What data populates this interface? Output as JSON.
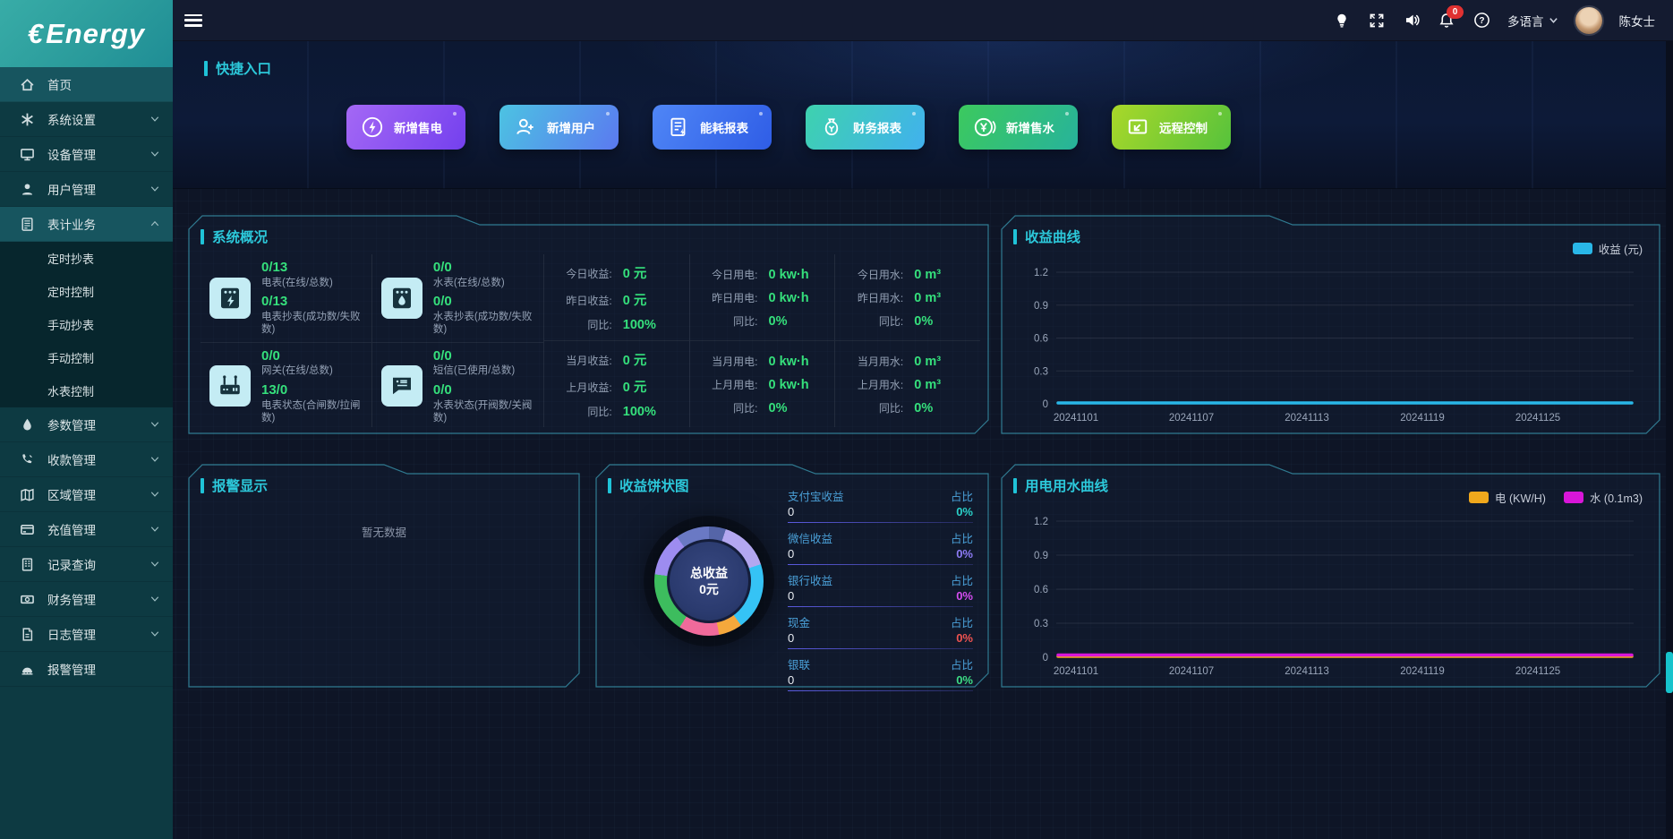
{
  "brand": {
    "symbol": "€",
    "name": "Energy"
  },
  "header": {
    "notification_count": "0",
    "language_label": "多语言",
    "user_name": "陈女士",
    "icons": [
      "bulb-icon",
      "fullscreen-icon",
      "speaker-icon",
      "bell-icon",
      "help-icon"
    ]
  },
  "sidebar": {
    "items": [
      {
        "label": "首页",
        "icon": "home",
        "active": true,
        "chevron": null
      },
      {
        "label": "系统设置",
        "icon": "gear",
        "chevron": "down"
      },
      {
        "label": "设备管理",
        "icon": "monitor",
        "chevron": "down"
      },
      {
        "label": "用户管理",
        "icon": "user",
        "chevron": "down"
      },
      {
        "label": "表计业务",
        "icon": "meter",
        "chevron": "up",
        "expanded": true,
        "highlight": true,
        "children": [
          "定时抄表",
          "定时控制",
          "手动抄表",
          "手动控制",
          "水表控制"
        ]
      },
      {
        "label": "参数管理",
        "icon": "droplet",
        "chevron": "down"
      },
      {
        "label": "收款管理",
        "icon": "phone",
        "chevron": "down"
      },
      {
        "label": "区域管理",
        "icon": "map",
        "chevron": "down"
      },
      {
        "label": "充值管理",
        "icon": "card",
        "chevron": "down"
      },
      {
        "label": "记录查询",
        "icon": "records",
        "chevron": "down"
      },
      {
        "label": "财务管理",
        "icon": "money",
        "chevron": "down"
      },
      {
        "label": "日志管理",
        "icon": "log",
        "chevron": "down"
      },
      {
        "label": "报警管理",
        "icon": "alarm",
        "chevron": null
      }
    ]
  },
  "quick": {
    "title": "快捷入口",
    "buttons": [
      {
        "label": "新增售电",
        "icon": "bolt-circle",
        "from": "#a468f5",
        "to": "#7440ee"
      },
      {
        "label": "新增用户",
        "icon": "user-plus",
        "from": "#4cc3e2",
        "to": "#5b79f0"
      },
      {
        "label": "能耗报表",
        "icon": "energy-doc",
        "from": "#4f86f6",
        "to": "#2f5de6"
      },
      {
        "label": "财务报表",
        "icon": "money-bag",
        "from": "#3ed2ae",
        "to": "#41b1ee"
      },
      {
        "label": "新增售水",
        "icon": "yen-circle",
        "from": "#3cc95e",
        "to": "#27b39b"
      },
      {
        "label": "远程控制",
        "icon": "remote-screen",
        "from": "#a9d829",
        "to": "#56c23c"
      }
    ]
  },
  "overview": {
    "title": "系统概况",
    "meters": [
      {
        "icon": "electric-meter",
        "value1": "0/13",
        "label1": "电表(在线/总数)",
        "value2": "0/13",
        "label2": "电表抄表(成功数/失败数)"
      },
      {
        "icon": "water-meter",
        "value1": "0/0",
        "label1": "水表(在线/总数)",
        "value2": "0/0",
        "label2": "水表抄表(成功数/失败数)"
      },
      {
        "icon": "gateway",
        "value1": "0/0",
        "label1": "网关(在线/总数)",
        "value2": "13/0",
        "label2": "电表状态(合闸数/拉闸数)"
      },
      {
        "icon": "sms",
        "value1": "0/0",
        "label1": "短信(已使用/总数)",
        "value2": "0/0",
        "label2": "水表状态(开阀数/关阀数)"
      }
    ],
    "stat_columns": [
      {
        "top": [
          {
            "label": "今日收益:",
            "value": "0 元"
          },
          {
            "label": "昨日收益:",
            "value": "0 元"
          },
          {
            "label": "同比:",
            "value": "100%"
          }
        ],
        "bottom": [
          {
            "label": "当月收益:",
            "value": "0 元"
          },
          {
            "label": "上月收益:",
            "value": "0 元"
          },
          {
            "label": "同比:",
            "value": "100%"
          }
        ]
      },
      {
        "top": [
          {
            "label": "今日用电:",
            "value": "0 kw·h"
          },
          {
            "label": "昨日用电:",
            "value": "0 kw·h"
          },
          {
            "label": "同比:",
            "value": "0%"
          }
        ],
        "bottom": [
          {
            "label": "当月用电:",
            "value": "0 kw·h"
          },
          {
            "label": "上月用电:",
            "value": "0 kw·h"
          },
          {
            "label": "同比:",
            "value": "0%"
          }
        ]
      },
      {
        "top": [
          {
            "label": "今日用水:",
            "value": "0 m³"
          },
          {
            "label": "昨日用水:",
            "value": "0 m³"
          },
          {
            "label": "同比:",
            "value": "0%"
          }
        ],
        "bottom": [
          {
            "label": "当月用水:",
            "value": "0 m³"
          },
          {
            "label": "上月用水:",
            "value": "0 m³"
          },
          {
            "label": "同比:",
            "value": "0%"
          }
        ]
      }
    ]
  },
  "alarm": {
    "title": "报警显示",
    "empty_text": "暂无数据"
  },
  "pie_panel": {
    "title": "收益饼状图",
    "ratio_label": "占比"
  },
  "chart_data": [
    {
      "id": "revenue",
      "type": "line",
      "title": "收益曲线",
      "ylim": [
        0,
        1.2
      ],
      "yticks": [
        1.2,
        0.9,
        0.6,
        0.3,
        0
      ],
      "x": [
        "20241101",
        "20241107",
        "20241113",
        "20241119",
        "20241125"
      ],
      "x_span_days": 30,
      "grid": true,
      "legend_position": "top-right",
      "series": [
        {
          "name": "收益 (元)",
          "color": "#29b7e8",
          "values": [
            0,
            0,
            0,
            0,
            0
          ]
        }
      ]
    },
    {
      "id": "pie",
      "type": "pie",
      "title": "收益饼状图",
      "center": {
        "label": "总收益",
        "value": "0元"
      },
      "slices": [
        {
          "label": "支付宝收益",
          "value": 0,
          "pct": "0%",
          "pct_color": "#2ad0c8"
        },
        {
          "label": "微信收益",
          "value": 0,
          "pct": "0%",
          "pct_color": "#8d7bf5"
        },
        {
          "label": "银行收益",
          "value": 0,
          "pct": "0%",
          "pct_color": "#d44df0"
        },
        {
          "label": "现金",
          "value": 0,
          "pct": "0%",
          "pct_color": "#ef5350"
        },
        {
          "label": "银联",
          "value": 0,
          "pct": "0%",
          "pct_color": "#3ddc84"
        }
      ],
      "ring_colors": [
        {
          "color": "#5565a8",
          "frac": 0.05
        },
        {
          "color": "#b3a7f0",
          "frac": 0.15
        },
        {
          "color": "#35c3f5",
          "frac": 0.2
        },
        {
          "color": "#f5a83c",
          "frac": 0.07
        },
        {
          "color": "#f06a9b",
          "frac": 0.12
        },
        {
          "color": "#3dbd5e",
          "frac": 0.18
        },
        {
          "color": "#9d8cf0",
          "frac": 0.13
        },
        {
          "color": "#6a79c4",
          "frac": 0.1
        }
      ]
    },
    {
      "id": "usage",
      "type": "line",
      "title": "用电用水曲线",
      "ylim": [
        0,
        1.2
      ],
      "yticks": [
        1.2,
        0.9,
        0.6,
        0.3,
        0
      ],
      "x": [
        "20241101",
        "20241107",
        "20241113",
        "20241119",
        "20241125"
      ],
      "x_span_days": 30,
      "grid": true,
      "legend_position": "top-right",
      "series": [
        {
          "name": "电 (KW/H)",
          "color": "#f0a81c",
          "values": [
            0,
            0,
            0,
            0,
            0
          ]
        },
        {
          "name": "水 (0.1m3)",
          "color": "#d916d9",
          "values": [
            0,
            0,
            0,
            0,
            0
          ]
        }
      ]
    }
  ]
}
